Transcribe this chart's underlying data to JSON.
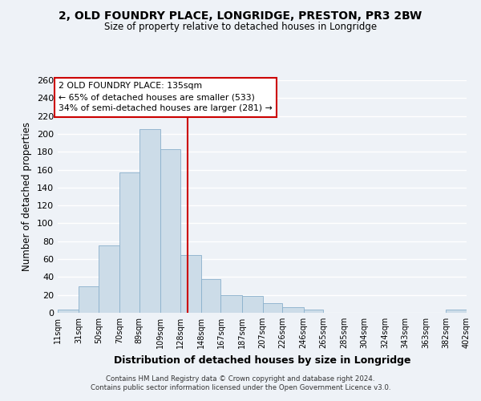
{
  "title": "2, OLD FOUNDRY PLACE, LONGRIDGE, PRESTON, PR3 2BW",
  "subtitle": "Size of property relative to detached houses in Longridge",
  "xlabel": "Distribution of detached houses by size in Longridge",
  "ylabel": "Number of detached properties",
  "bin_edges": [
    11,
    31,
    50,
    70,
    89,
    109,
    128,
    148,
    167,
    187,
    207,
    226,
    246,
    265,
    285,
    304,
    324,
    343,
    363,
    382,
    402
  ],
  "bar_heights": [
    4,
    30,
    75,
    157,
    205,
    183,
    65,
    38,
    20,
    19,
    11,
    6,
    4,
    0,
    0,
    0,
    0,
    0,
    0,
    4
  ],
  "bar_color": "#ccdce8",
  "bar_edgecolor": "#8ab0cc",
  "tick_labels": [
    "11sqm",
    "31sqm",
    "50sqm",
    "70sqm",
    "89sqm",
    "109sqm",
    "128sqm",
    "148sqm",
    "167sqm",
    "187sqm",
    "207sqm",
    "226sqm",
    "246sqm",
    "265sqm",
    "285sqm",
    "304sqm",
    "324sqm",
    "343sqm",
    "363sqm",
    "382sqm",
    "402sqm"
  ],
  "vline_x": 135,
  "vline_color": "#cc0000",
  "ylim": [
    0,
    260
  ],
  "yticks": [
    0,
    20,
    40,
    60,
    80,
    100,
    120,
    140,
    160,
    180,
    200,
    220,
    240,
    260
  ],
  "annotation_title": "2 OLD FOUNDRY PLACE: 135sqm",
  "annotation_line1": "← 65% of detached houses are smaller (533)",
  "annotation_line2": "34% of semi-detached houses are larger (281) →",
  "annotation_box_facecolor": "#ffffff",
  "annotation_box_edgecolor": "#cc0000",
  "footer1": "Contains HM Land Registry data © Crown copyright and database right 2024.",
  "footer2": "Contains public sector information licensed under the Open Government Licence v3.0.",
  "bg_color": "#eef2f7",
  "grid_color": "#ffffff"
}
